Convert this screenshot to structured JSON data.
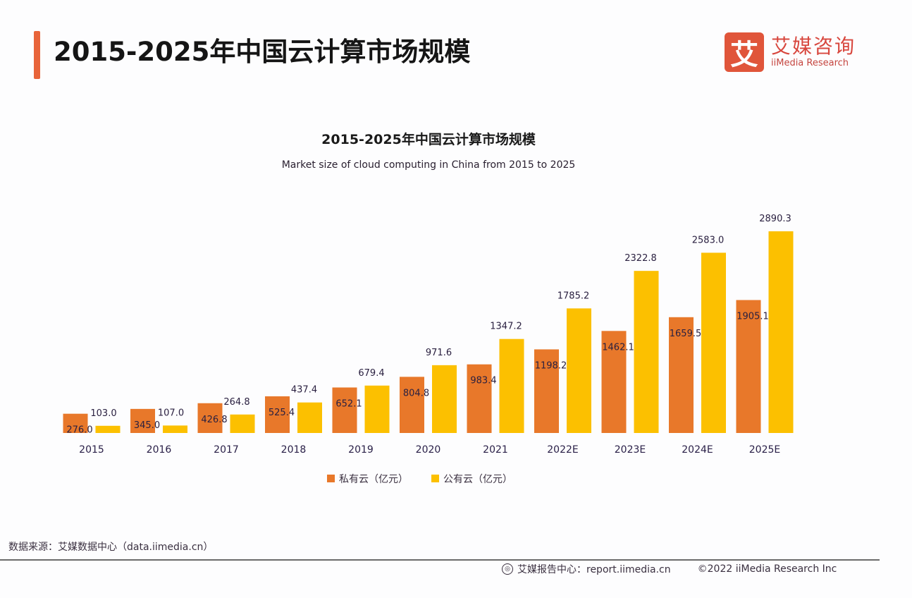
{
  "header": {
    "title": "2015-2025年中国云计算市场规模",
    "logo_mark": "艾",
    "logo_cn": "艾媒咨询",
    "logo_en": "iiMedia Research"
  },
  "colors": {
    "private": "#e8782a",
    "public": "#fcc000",
    "accent": "#e8643a"
  },
  "chart_data": {
    "type": "bar",
    "title": "2015-2025年中国云计算市场规模",
    "subtitle": "Market size of cloud computing in China from 2015 to 2025",
    "categories": [
      "2015",
      "2016",
      "2017",
      "2018",
      "2019",
      "2020",
      "2021",
      "2022E",
      "2023E",
      "2024E",
      "2025E"
    ],
    "series": [
      {
        "name": "私有云（亿元）",
        "values": [
          276.0,
          345.0,
          426.8,
          525.4,
          652.1,
          804.8,
          983.4,
          1198.2,
          1462.1,
          1659.5,
          1905.1
        ],
        "labels": [
          "276.0",
          "345.0",
          "426.8",
          "525.4",
          "652.1",
          "804.8",
          "983.4",
          "1198.2",
          "1462.1",
          "1659.5",
          "1905.1"
        ]
      },
      {
        "name": "公有云（亿元）",
        "values": [
          103.0,
          107.0,
          264.8,
          437.4,
          679.4,
          971.6,
          1347.2,
          1785.2,
          2322.8,
          2583.0,
          2890.3
        ],
        "labels": [
          "103.0",
          "107.0",
          "264.8",
          "437.4",
          "679.4",
          "971.6",
          "1347.2",
          "1785.2",
          "2322.8",
          "2583.0",
          "2890.3"
        ]
      }
    ],
    "xlabel": "",
    "ylabel": "",
    "ylim": [
      0,
      2900
    ],
    "grid": false,
    "legend": "bottom-center"
  },
  "footer": {
    "source": "数据来源：艾媒数据中心（data.iimedia.cn）",
    "report_center": "艾媒报告中心：report.iimedia.cn",
    "copyright": "©2022 iiMedia Research Inc"
  }
}
